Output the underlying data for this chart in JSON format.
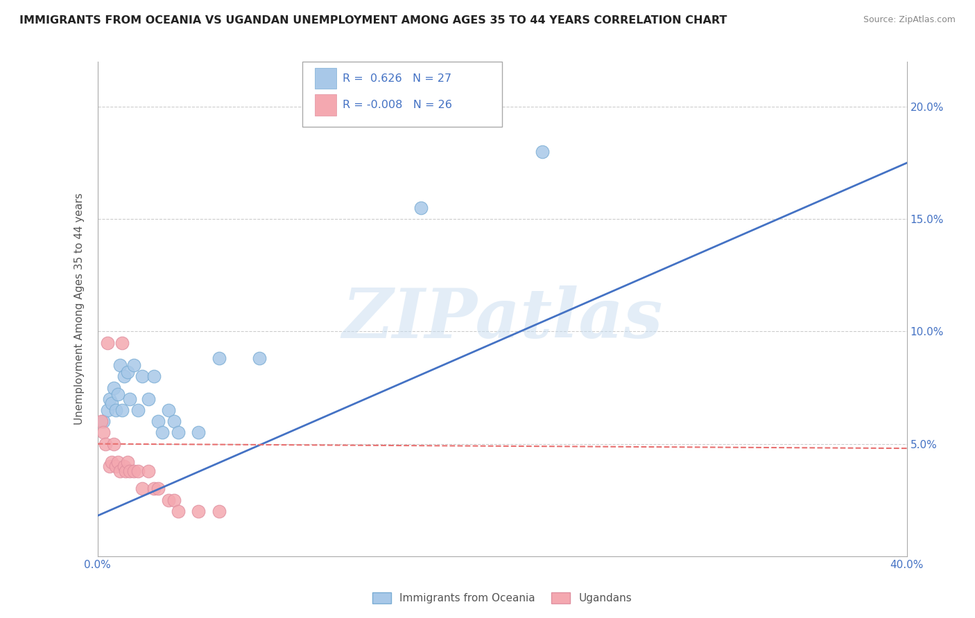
{
  "title": "IMMIGRANTS FROM OCEANIA VS UGANDAN UNEMPLOYMENT AMONG AGES 35 TO 44 YEARS CORRELATION CHART",
  "source": "Source: ZipAtlas.com",
  "ylabel": "Unemployment Among Ages 35 to 44 years",
  "xlim": [
    0.0,
    0.4
  ],
  "ylim": [
    0.0,
    0.22
  ],
  "xticks": [
    0.0,
    0.05,
    0.1,
    0.15,
    0.2,
    0.25,
    0.3,
    0.35,
    0.4
  ],
  "yticks": [
    0.05,
    0.1,
    0.15,
    0.2
  ],
  "ytick_labels": [
    "5.0%",
    "10.0%",
    "15.0%",
    "20.0%"
  ],
  "xtick_labels": [
    "0.0%",
    "",
    "",
    "",
    "",
    "",
    "",
    "",
    "40.0%"
  ],
  "blue_R": "0.626",
  "blue_N": "27",
  "pink_R": "-0.008",
  "pink_N": "26",
  "blue_color": "#a8c8e8",
  "pink_color": "#f4a8b0",
  "blue_line_color": "#4472c4",
  "pink_line_color": "#e87070",
  "watermark": "ZIPatlas",
  "legend_label_blue": "Immigrants from Oceania",
  "legend_label_pink": "Ugandans",
  "blue_scatter_x": [
    0.003,
    0.005,
    0.006,
    0.007,
    0.008,
    0.009,
    0.01,
    0.011,
    0.012,
    0.013,
    0.015,
    0.016,
    0.018,
    0.02,
    0.022,
    0.025,
    0.028,
    0.03,
    0.032,
    0.035,
    0.038,
    0.04,
    0.05,
    0.06,
    0.08,
    0.16,
    0.22
  ],
  "blue_scatter_y": [
    0.06,
    0.065,
    0.07,
    0.068,
    0.075,
    0.065,
    0.072,
    0.085,
    0.065,
    0.08,
    0.082,
    0.07,
    0.085,
    0.065,
    0.08,
    0.07,
    0.08,
    0.06,
    0.055,
    0.065,
    0.06,
    0.055,
    0.055,
    0.088,
    0.088,
    0.155,
    0.18
  ],
  "pink_scatter_x": [
    0.002,
    0.003,
    0.004,
    0.005,
    0.006,
    0.007,
    0.008,
    0.009,
    0.01,
    0.011,
    0.012,
    0.013,
    0.014,
    0.015,
    0.016,
    0.018,
    0.02,
    0.022,
    0.025,
    0.028,
    0.03,
    0.035,
    0.038,
    0.04,
    0.05,
    0.06
  ],
  "pink_scatter_y": [
    0.06,
    0.055,
    0.05,
    0.095,
    0.04,
    0.042,
    0.05,
    0.04,
    0.042,
    0.038,
    0.095,
    0.04,
    0.038,
    0.042,
    0.038,
    0.038,
    0.038,
    0.03,
    0.038,
    0.03,
    0.03,
    0.025,
    0.025,
    0.02,
    0.02,
    0.02
  ],
  "blue_trend_x": [
    0.0,
    0.4
  ],
  "blue_trend_y": [
    0.018,
    0.175
  ],
  "pink_trend_x": [
    0.0,
    0.4
  ],
  "pink_trend_y": [
    0.05,
    0.048
  ],
  "background_color": "#ffffff",
  "grid_color": "#cccccc"
}
